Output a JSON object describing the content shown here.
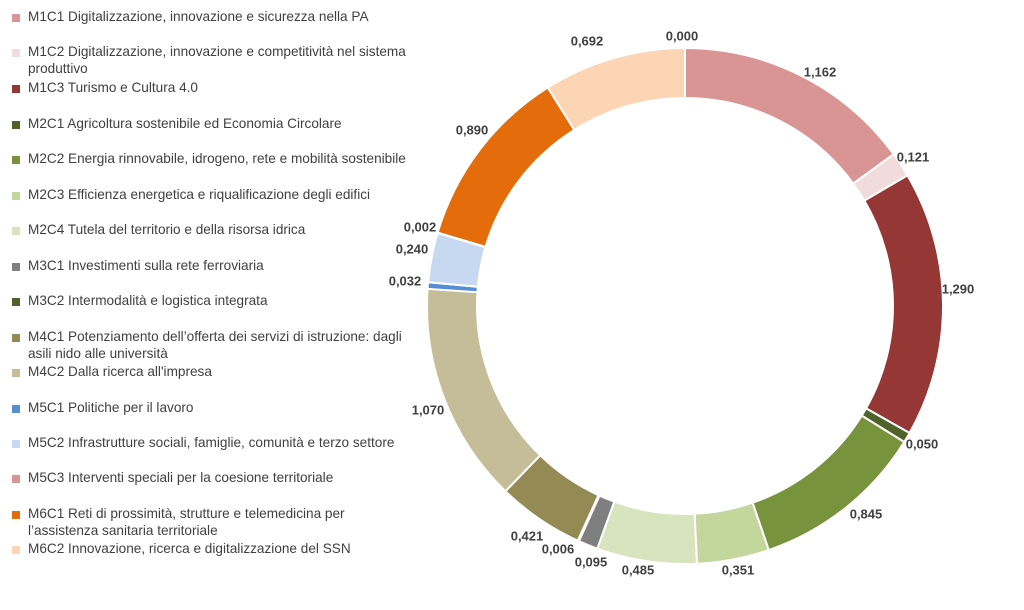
{
  "chart_data": {
    "type": "doughnut",
    "series": [
      {
        "name": "M1C1 Digitalizzazione, innovazione e sicurezza nella PA",
        "value": 1.162,
        "label": "1,162",
        "color": "#d99594"
      },
      {
        "name": "M1C2 Digitalizzazione, innovazione e competitività nel sistema produttivo",
        "value": 0.121,
        "label": "0,121",
        "color": "#f2dcdb"
      },
      {
        "name": "M1C3 Turismo e Cultura 4.0",
        "value": 1.29,
        "label": "1,290",
        "color": "#953735"
      },
      {
        "name": "M2C1 Agricoltura sostenibile ed Economia Circolare",
        "value": 0.05,
        "label": "0,050",
        "color": "#4f6228"
      },
      {
        "name": "M2C2 Energia rinnovabile, idrogeno, rete e mobilità sostenibile",
        "value": 0.845,
        "label": "0,845",
        "color": "#77933c"
      },
      {
        "name": "M2C3 Efficienza energetica e riqualificazione degli edifici",
        "value": 0.351,
        "label": "0,351",
        "color": "#c3d69b"
      },
      {
        "name": "M2C4 Tutela del territorio e della risorsa idrica",
        "value": 0.485,
        "label": "0,485",
        "color": "#d7e4bd"
      },
      {
        "name": "M3C1 Investimenti sulla rete ferroviaria",
        "value": 0.095,
        "label": "0,095",
        "color": "#7f7f7f"
      },
      {
        "name": "M3C2 Intermodalità e logistica integrata",
        "value": 0.006,
        "label": "0,006",
        "color": "#4f6228"
      },
      {
        "name": "M4C1 Potenziamento dell’offerta dei servizi di istruzione: dagli asili nido alle università",
        "value": 0.421,
        "label": "0,421",
        "color": "#948a54"
      },
      {
        "name": "M4C2 Dalla ricerca all'impresa",
        "value": 1.07,
        "label": "1,070",
        "color": "#c4bd97"
      },
      {
        "name": "M5C1 Politiche per il lavoro",
        "value": 0.032,
        "label": "0,032",
        "color": "#558ed5"
      },
      {
        "name": "M5C2 Infrastrutture sociali, famiglie, comunità e terzo settore",
        "value": 0.24,
        "label": "0,240",
        "color": "#c6d9f1"
      },
      {
        "name": "M5C3 Interventi speciali per la coesione territoriale",
        "value": 0.002,
        "label": "0,002",
        "color": "#d99594"
      },
      {
        "name": "M6C1 Reti di prossimità, strutture e telemedicina per l’assistenza sanitaria territoriale",
        "value": 0.89,
        "label": "0,890",
        "color": "#e46c0a"
      },
      {
        "name": "M6C2 Innovazione, ricerca e digitalizzazione del SSN",
        "value": 0.692,
        "label": "0,692",
        "color": "#fcd5b5"
      },
      {
        "name": "",
        "value": 0.0,
        "label": "0,000",
        "color": "#ffffff"
      }
    ]
  }
}
